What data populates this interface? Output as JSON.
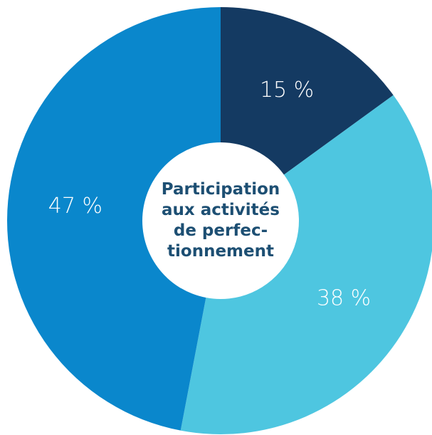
{
  "chart_data": {
    "type": "donut",
    "title_lines": [
      "Participation",
      "aux activités",
      "de perfec-",
      "tionnement"
    ],
    "values": [
      15,
      38,
      47
    ],
    "value_labels": [
      "15 %",
      "38 %",
      "47 %"
    ],
    "colors": [
      "#143a62",
      "#4ec6e0",
      "#0a87cc"
    ]
  }
}
